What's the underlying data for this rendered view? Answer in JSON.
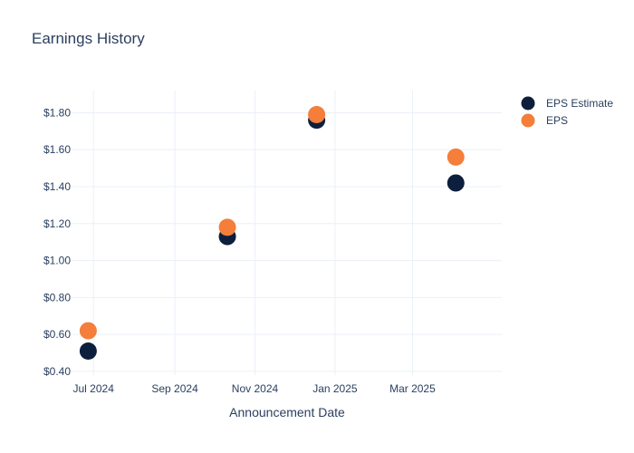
{
  "chart_data": {
    "type": "scatter",
    "title": "Earnings History",
    "xlabel": "Announcement Date",
    "ylabel": "",
    "x_axis_type": "date",
    "xlim": [
      "2024-06-15",
      "2025-05-08"
    ],
    "ylim": [
      0.38,
      1.92
    ],
    "x_ticks": [
      {
        "date": "2024-07-01",
        "label": "Jul 2024"
      },
      {
        "date": "2024-09-01",
        "label": "Sep 2024"
      },
      {
        "date": "2024-11-01",
        "label": "Nov 2024"
      },
      {
        "date": "2025-01-01",
        "label": "Jan 2025"
      },
      {
        "date": "2025-03-01",
        "label": "Mar 2025"
      }
    ],
    "y_ticks": [
      {
        "value": 0.4,
        "label": "$0.40"
      },
      {
        "value": 0.6,
        "label": "$0.60"
      },
      {
        "value": 0.8,
        "label": "$0.80"
      },
      {
        "value": 1.0,
        "label": "$1.00"
      },
      {
        "value": 1.2,
        "label": "$1.20"
      },
      {
        "value": 1.4,
        "label": "$1.40"
      },
      {
        "value": 1.6,
        "label": "$1.60"
      },
      {
        "value": 1.8,
        "label": "$1.80"
      }
    ],
    "grid": true,
    "legend_position": "top-right",
    "series": [
      {
        "name": "EPS Estimate",
        "color": "#0d1f3c",
        "points": [
          {
            "x": "2024-06-27",
            "y": 0.51
          },
          {
            "x": "2024-10-11",
            "y": 1.13
          },
          {
            "x": "2024-12-18",
            "y": 1.76
          },
          {
            "x": "2025-04-03",
            "y": 1.42
          }
        ]
      },
      {
        "name": "EPS",
        "color": "#f47e3a",
        "points": [
          {
            "x": "2024-06-27",
            "y": 0.62
          },
          {
            "x": "2024-10-11",
            "y": 1.18
          },
          {
            "x": "2024-12-18",
            "y": 1.79
          },
          {
            "x": "2025-04-03",
            "y": 1.56
          }
        ]
      }
    ]
  }
}
